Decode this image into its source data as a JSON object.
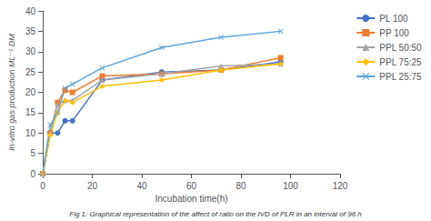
{
  "chart_data": {
    "type": "line",
    "xlabel": "Incubation time(h)",
    "ylabel": "In-vitro gas production ML⁻¹ DM",
    "caption": "Fig 1: Graphical representation of the affect of ratio on the IVD of PLR in an interval of 96 h",
    "x": [
      0,
      3,
      6,
      9,
      12,
      24,
      48,
      72,
      96
    ],
    "xlim": [
      0,
      120
    ],
    "ylim": [
      0,
      40
    ],
    "xticks": [
      0,
      20,
      40,
      60,
      80,
      100,
      120
    ],
    "yticks": [
      0,
      5,
      10,
      15,
      20,
      25,
      30,
      35,
      40
    ],
    "grid": false,
    "legend": "upper right",
    "series": [
      {
        "name": "PL 100",
        "color": "#4472C4",
        "marker": "circle",
        "values": [
          0,
          10,
          10,
          13,
          13,
          23,
          25,
          25.5,
          27.5
        ]
      },
      {
        "name": "PP 100",
        "color": "#ED7D31",
        "marker": "square",
        "values": [
          0,
          10,
          17.5,
          20.5,
          20,
          24,
          24.5,
          25.5,
          28.5
        ]
      },
      {
        "name": "PPL 50:50",
        "color": "#A5A5A5",
        "marker": "triangle",
        "values": [
          0,
          10,
          17,
          18,
          18,
          23,
          24.5,
          26.5,
          27
        ]
      },
      {
        "name": "PPL 75:25",
        "color": "#FFC000",
        "marker": "diamond",
        "values": [
          0,
          9.5,
          15,
          18,
          17.5,
          21.5,
          23,
          25.5,
          27
        ]
      },
      {
        "name": "PPL 25:75",
        "color": "#5BA3DC",
        "marker": "cross",
        "values": [
          0,
          12,
          15,
          21,
          22,
          26,
          31,
          33.5,
          35
        ]
      }
    ]
  }
}
